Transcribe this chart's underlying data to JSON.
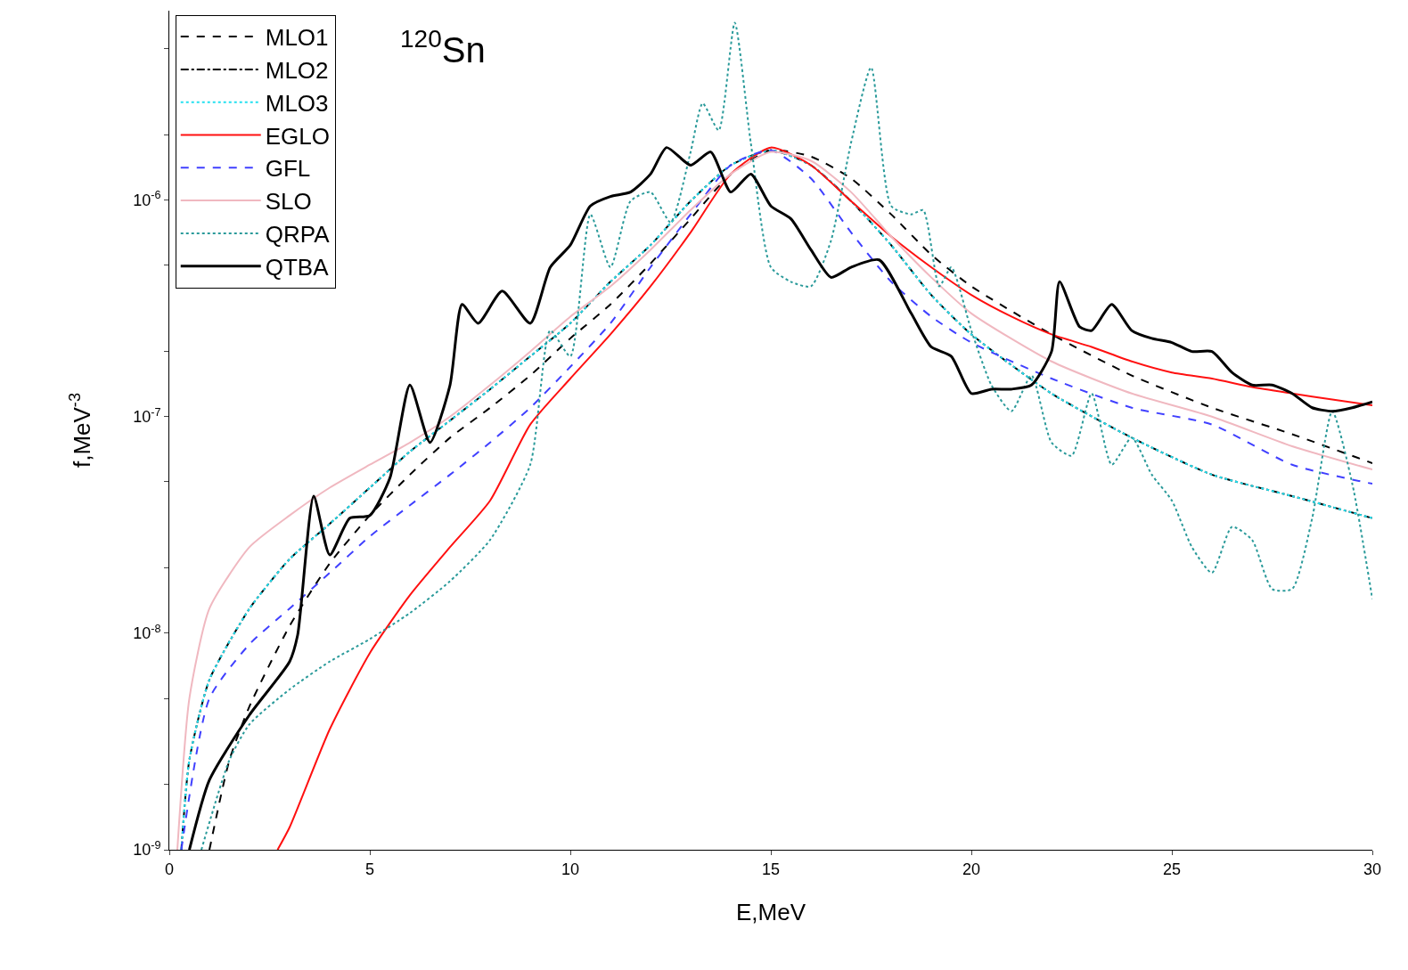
{
  "chart_data": {
    "type": "line",
    "title": "$^{120}$Sn",
    "xlabel": "E,MeV",
    "ylabel": "f,MeV$^{-3}$",
    "xlim": [
      0,
      30
    ],
    "xticks": [
      0,
      5,
      10,
      15,
      20,
      25,
      30
    ],
    "ylim": [
      1e-09,
      7.5e-06
    ],
    "yticks": [
      {
        "value": 1e-09,
        "label": "10$^{-9}$"
      },
      {
        "value": 1e-08,
        "label": "10$^{-8}$"
      },
      {
        "value": 1e-07,
        "label": "10$^{-7}$"
      },
      {
        "value": 1e-06,
        "label": "10$^{-6}$"
      }
    ],
    "log": "y",
    "legend": "top left",
    "series": [
      {
        "name": "MLO1",
        "color": "#000000",
        "line_style": "dashed",
        "x": [
          1,
          1.5,
          2,
          3,
          4,
          5,
          6,
          7,
          8,
          9,
          10,
          11,
          12,
          13,
          14,
          15,
          16,
          17,
          18,
          19,
          20,
          22,
          24,
          26,
          28,
          30
        ],
        "values": [
          1e-09,
          2.6e-09,
          4.6e-09,
          1.08e-08,
          2.1e-08,
          3.5e-08,
          5.4e-08,
          8e-08,
          1.1e-07,
          1.55e-07,
          2.3e-07,
          3.3e-07,
          5.1e-07,
          8.2e-07,
          1.32e-06,
          1.7e-06,
          1.59e-06,
          1.26e-06,
          8.6e-07,
          5.6e-07,
          4e-07,
          2.4e-07,
          1.55e-07,
          1.1e-07,
          8.3e-08,
          6.1e-08
        ]
      },
      {
        "name": "MLO2",
        "color": "#000000",
        "line_style": "dashdot",
        "x": [
          0.3,
          0.5,
          1,
          2,
          3,
          4,
          5,
          6,
          7,
          8,
          9,
          10,
          11,
          12,
          13,
          14,
          15,
          16,
          17,
          18,
          19,
          20,
          22,
          24,
          26,
          28,
          30
        ],
        "values": [
          1e-09,
          2.6e-09,
          6.1e-09,
          1.3e-08,
          2.2e-08,
          3.2e-08,
          4.7e-08,
          6.9e-08,
          9.6e-08,
          1.34e-07,
          1.9e-07,
          2.7e-07,
          4.2e-07,
          6.2e-07,
          9.9e-07,
          1.45e-06,
          1.7e-06,
          1.45e-06,
          9.9e-07,
          6.2e-07,
          3.65e-07,
          2.4e-07,
          1.28e-07,
          8e-08,
          5.4e-08,
          4.3e-08,
          3.4e-08
        ]
      },
      {
        "name": "MLO3",
        "color": "#22e0f0",
        "line_style": "dotted",
        "x": [
          0.3,
          0.5,
          1,
          2,
          3,
          4,
          5,
          6,
          7,
          8,
          9,
          10,
          11,
          12,
          13,
          14,
          15,
          16,
          17,
          18,
          19,
          20,
          22,
          24,
          26,
          28,
          30
        ],
        "values": [
          1e-09,
          2.6e-09,
          6.1e-09,
          1.3e-08,
          2.2e-08,
          3.2e-08,
          4.7e-08,
          6.9e-08,
          9.6e-08,
          1.34e-07,
          1.9e-07,
          2.7e-07,
          4.2e-07,
          6.2e-07,
          9.9e-07,
          1.45e-06,
          1.7e-06,
          1.45e-06,
          9.9e-07,
          6.2e-07,
          3.65e-07,
          2.4e-07,
          1.28e-07,
          8e-08,
          5.4e-08,
          4.3e-08,
          3.4e-08
        ]
      },
      {
        "name": "EGLO",
        "color": "#ff1010",
        "line_style": "solid",
        "x": [
          2.7,
          3,
          4,
          5,
          6,
          7,
          8,
          9,
          10,
          11,
          12,
          13,
          14,
          15,
          16,
          17,
          18,
          19,
          20,
          21,
          22,
          23,
          24,
          25,
          26,
          27,
          28,
          29,
          30
        ],
        "values": [
          1e-09,
          1.27e-09,
          3.6e-09,
          8.1e-09,
          1.5e-08,
          2.5e-08,
          4.1e-08,
          9.2e-08,
          1.5e-07,
          2.4e-07,
          4e-07,
          7.1e-07,
          1.32e-06,
          1.75e-06,
          1.45e-06,
          9.9e-07,
          6.8e-07,
          4.9e-07,
          3.65e-07,
          2.9e-07,
          2.4e-07,
          2.1e-07,
          1.8e-07,
          1.6e-07,
          1.5e-07,
          1.37e-07,
          1.28e-07,
          1.2e-07,
          1.13e-07
        ]
      },
      {
        "name": "GFL",
        "color": "#4040ff",
        "line_style": "dashed",
        "x": [
          0.3,
          1,
          2,
          3,
          4,
          5,
          6,
          7,
          8,
          9,
          10,
          11,
          12,
          13,
          14,
          15,
          16,
          17,
          18,
          19,
          20,
          22,
          24,
          26,
          28,
          30
        ],
        "values": [
          1e-09,
          5e-09,
          8.9e-09,
          1.3e-08,
          1.9e-08,
          2.8e-08,
          3.9e-08,
          5.4e-08,
          7.6e-08,
          1.1e-07,
          1.7e-07,
          2.7e-07,
          4.9e-07,
          8.6e-07,
          1.45e-06,
          1.7e-06,
          1.26e-06,
          7.1e-07,
          4.2e-07,
          2.9e-07,
          2.2e-07,
          1.5e-07,
          1.1e-07,
          9.2e-08,
          6e-08,
          4.9e-08
        ]
      },
      {
        "name": "SLO",
        "color": "#f0b8c0",
        "line_style": "solid",
        "x": [
          0.2,
          0.5,
          1,
          2,
          3,
          4,
          5,
          6,
          7,
          8,
          9,
          10,
          11,
          12,
          13,
          14,
          15,
          16,
          17,
          18,
          19,
          20,
          22,
          24,
          26,
          28,
          30
        ],
        "values": [
          1e-09,
          5e-09,
          1.3e-08,
          2.5e-08,
          3.5e-08,
          4.7e-08,
          6e-08,
          7.6e-08,
          1e-07,
          1.4e-07,
          2e-07,
          2.9e-07,
          4e-07,
          5.9e-07,
          9e-07,
          1.32e-06,
          1.67e-06,
          1.52e-06,
          1.09e-06,
          6.8e-07,
          4.4e-07,
          3e-07,
          1.8e-07,
          1.28e-07,
          1e-07,
          7.3e-08,
          5.7e-08
        ]
      },
      {
        "name": "QRPA",
        "color": "#2a9a9a",
        "line_style": "dotted",
        "x": [
          0.8,
          1.5,
          2,
          3,
          4,
          5,
          6,
          7,
          8,
          9,
          9.5,
          10,
          10.5,
          11,
          11.5,
          12,
          12.5,
          13,
          13.3,
          13.7,
          14.1,
          14.5,
          15,
          15.5,
          16,
          16.5,
          17,
          17.5,
          18,
          18.5,
          18.8,
          19.2,
          19.5,
          20,
          20.5,
          21,
          21.5,
          22,
          22.5,
          23,
          23.5,
          24,
          24.5,
          25,
          25.5,
          26,
          26.5,
          27,
          27.5,
          28,
          28.5,
          29,
          29.5,
          30
        ],
        "values": [
          1e-09,
          2.6e-09,
          3.8e-09,
          5.5e-09,
          7.4e-09,
          9.4e-09,
          1.24e-08,
          1.74e-08,
          2.7e-08,
          6e-08,
          2.5e-07,
          1.9e-07,
          8.6e-07,
          4.9e-07,
          9.9e-07,
          1.09e-06,
          7.9e-07,
          1.67e-06,
          2.8e-06,
          2.1e-06,
          6.6e-06,
          1.84e-06,
          4.9e-07,
          4.2e-07,
          4e-07,
          6.5e-07,
          1.84e-06,
          4.1e-06,
          9.4e-07,
          8.6e-07,
          9e-07,
          4e-07,
          4.9e-07,
          2.5e-07,
          1.4e-07,
          1.06e-07,
          1.55e-07,
          7.6e-08,
          6.6e-08,
          1.28e-07,
          6e-08,
          8e-08,
          5.4e-08,
          4.1e-08,
          2.5e-08,
          1.9e-08,
          3.1e-08,
          2.7e-08,
          1.6e-08,
          1.6e-08,
          3.4e-08,
          1.06e-07,
          4.9e-08,
          1.44e-08
        ]
      },
      {
        "name": "QTBA",
        "color": "#000000",
        "line_style": "solid",
        "x": [
          0.5,
          1,
          2,
          3,
          3.2,
          3.6,
          4,
          4.5,
          5,
          5.5,
          6,
          6.5,
          7,
          7.3,
          7.7,
          8.3,
          9,
          9.5,
          10,
          10.5,
          11,
          11.5,
          12,
          12.4,
          13,
          13.5,
          14,
          14.5,
          15,
          15.5,
          16,
          16.5,
          17,
          17.7,
          18.5,
          19,
          19.5,
          20,
          20.5,
          21,
          21.5,
          22,
          22.2,
          22.7,
          23,
          23.5,
          24,
          24.5,
          25,
          25.5,
          26,
          26.5,
          27,
          27.5,
          28,
          28.5,
          29,
          29.5,
          30
        ],
        "values": [
          1e-09,
          2.1e-09,
          4.2e-09,
          7.4e-09,
          9.8e-09,
          4.3e-08,
          2.3e-08,
          3.4e-08,
          3.5e-08,
          5.2e-08,
          1.4e-07,
          7.6e-08,
          1.4e-07,
          3.3e-07,
          2.7e-07,
          3.8e-07,
          2.7e-07,
          4.9e-07,
          6.2e-07,
          9.4e-07,
          1.04e-06,
          1.09e-06,
          1.32e-06,
          1.75e-06,
          1.45e-06,
          1.67e-06,
          1.09e-06,
          1.32e-06,
          9.4e-07,
          8.2e-07,
          5.9e-07,
          4.4e-07,
          4.9e-07,
          5.3e-07,
          3e-07,
          2.1e-07,
          1.9e-07,
          1.28e-07,
          1.34e-07,
          1.34e-07,
          1.4e-07,
          2e-07,
          4.2e-07,
          2.6e-07,
          2.5e-07,
          3.3e-07,
          2.5e-07,
          2.3e-07,
          2.2e-07,
          2e-07,
          2e-07,
          1.6e-07,
          1.4e-07,
          1.4e-07,
          1.28e-07,
          1.1e-07,
          1.06e-07,
          1.1e-07,
          1.17e-07
        ]
      }
    ]
  }
}
